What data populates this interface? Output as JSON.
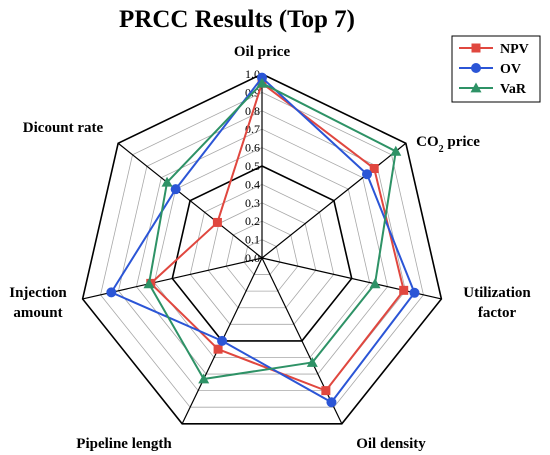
{
  "chart_data": {
    "type": "radar",
    "title": "PRCC Results (Top 7)",
    "axes": [
      {
        "lines": [
          "Oil price"
        ]
      },
      {
        "lines": [
          "CO",
          "2",
          " price"
        ],
        "subscript": true
      },
      {
        "lines": [
          "Utilization",
          "factor"
        ]
      },
      {
        "lines": [
          "Oil density"
        ]
      },
      {
        "lines": [
          "Pipeline length"
        ]
      },
      {
        "lines": [
          "Injection",
          "amount"
        ]
      },
      {
        "lines": [
          "Dicount rate"
        ]
      }
    ],
    "axis_names": [
      "Oil price",
      "CO2 price",
      "Utilization factor",
      "Oil density",
      "Pipeline length",
      "Injection amount",
      "Dicount rate"
    ],
    "ticks": [
      "0.0",
      "0.1",
      "0.2",
      "0.3",
      "0.4",
      "0.5",
      "0.6",
      "0.7",
      "0.8",
      "0.9",
      "1.0"
    ],
    "rlim": [
      0,
      1
    ],
    "grid": true,
    "legend_position": "top-right",
    "series": [
      {
        "name": "NPV",
        "color": "#e0473f",
        "marker": "square",
        "values": [
          0.95,
          0.78,
          0.79,
          0.8,
          0.55,
          0.62,
          0.31
        ]
      },
      {
        "name": "OV",
        "color": "#2b55d6",
        "marker": "circle",
        "values": [
          0.98,
          0.73,
          0.85,
          0.87,
          0.5,
          0.84,
          0.6
        ]
      },
      {
        "name": "VaR",
        "color": "#2e9266",
        "marker": "triangle",
        "values": [
          0.95,
          0.93,
          0.63,
          0.63,
          0.73,
          0.63,
          0.66
        ]
      }
    ]
  }
}
